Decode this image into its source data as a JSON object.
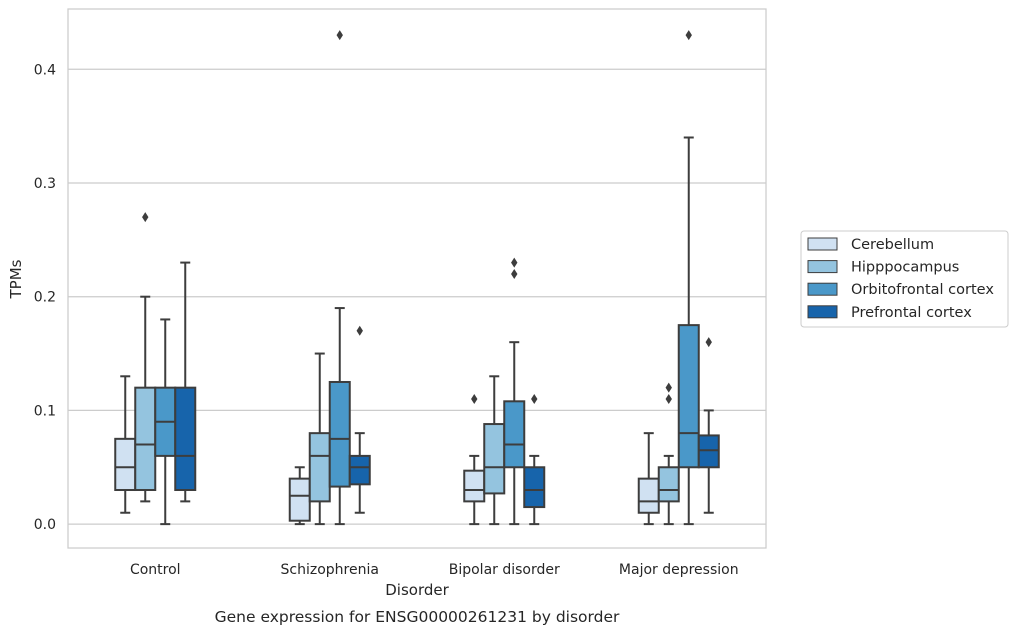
{
  "caption": "Gene expression for ENSG00000261231 by disorder",
  "chart_data": {
    "type": "box",
    "title": "",
    "xlabel": "Disorder",
    "ylabel": "TPMs",
    "ylim": [
      -0.021,
      0.453
    ],
    "yticks": [
      0.0,
      0.1,
      0.2,
      0.3,
      0.4
    ],
    "ytick_labels": [
      "0.0",
      "0.1",
      "0.2",
      "0.3",
      "0.4"
    ],
    "grid": "horizontal",
    "legend_position": "right",
    "categories": [
      "Control",
      "Schizophrenia",
      "Bipolar disorder",
      "Major depression"
    ],
    "colors": [
      "#d0e1f2",
      "#94c4df",
      "#4a98c9",
      "#1764ab"
    ],
    "series": [
      {
        "name": "Cerebellum",
        "boxes": [
          {
            "whislo": 0.01,
            "q1": 0.03,
            "med": 0.05,
            "q3": 0.075,
            "whishi": 0.13,
            "fliers": []
          },
          {
            "whislo": 0.0,
            "q1": 0.003,
            "med": 0.025,
            "q3": 0.04,
            "whishi": 0.05,
            "fliers": []
          },
          {
            "whislo": 0.0,
            "q1": 0.02,
            "med": 0.03,
            "q3": 0.047,
            "whishi": 0.06,
            "fliers": [
              0.11
            ]
          },
          {
            "whislo": 0.0,
            "q1": 0.01,
            "med": 0.02,
            "q3": 0.04,
            "whishi": 0.08,
            "fliers": []
          }
        ]
      },
      {
        "name": "Hipppocampus",
        "boxes": [
          {
            "whislo": 0.02,
            "q1": 0.03,
            "med": 0.07,
            "q3": 0.12,
            "whishi": 0.2,
            "fliers": [
              0.27
            ]
          },
          {
            "whislo": 0.0,
            "q1": 0.02,
            "med": 0.06,
            "q3": 0.08,
            "whishi": 0.15,
            "fliers": []
          },
          {
            "whislo": 0.0,
            "q1": 0.027,
            "med": 0.05,
            "q3": 0.088,
            "whishi": 0.13,
            "fliers": []
          },
          {
            "whislo": 0.0,
            "q1": 0.02,
            "med": 0.03,
            "q3": 0.05,
            "whishi": 0.06,
            "fliers": [
              0.11,
              0.12
            ]
          }
        ]
      },
      {
        "name": "Orbitofrontal cortex",
        "boxes": [
          {
            "whislo": 0.0,
            "q1": 0.06,
            "med": 0.09,
            "q3": 0.12,
            "whishi": 0.18,
            "fliers": []
          },
          {
            "whislo": 0.0,
            "q1": 0.033,
            "med": 0.075,
            "q3": 0.125,
            "whishi": 0.19,
            "fliers": [
              0.43
            ]
          },
          {
            "whislo": 0.0,
            "q1": 0.05,
            "med": 0.07,
            "q3": 0.108,
            "whishi": 0.16,
            "fliers": [
              0.22,
              0.23
            ]
          },
          {
            "whislo": 0.0,
            "q1": 0.05,
            "med": 0.08,
            "q3": 0.175,
            "whishi": 0.34,
            "fliers": [
              0.43
            ]
          }
        ]
      },
      {
        "name": "Prefrontal cortex",
        "boxes": [
          {
            "whislo": 0.02,
            "q1": 0.03,
            "med": 0.06,
            "q3": 0.12,
            "whishi": 0.23,
            "fliers": []
          },
          {
            "whislo": 0.01,
            "q1": 0.035,
            "med": 0.05,
            "q3": 0.06,
            "whishi": 0.08,
            "fliers": [
              0.17
            ]
          },
          {
            "whislo": 0.0,
            "q1": 0.015,
            "med": 0.03,
            "q3": 0.05,
            "whishi": 0.06,
            "fliers": [
              0.11
            ]
          },
          {
            "whislo": 0.01,
            "q1": 0.05,
            "med": 0.065,
            "q3": 0.078,
            "whishi": 0.1,
            "fliers": [
              0.16
            ]
          }
        ]
      }
    ]
  }
}
